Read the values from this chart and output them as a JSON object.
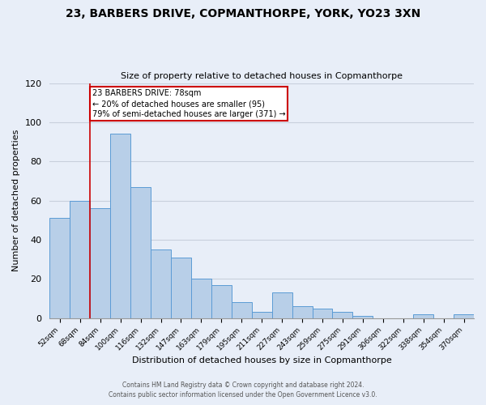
{
  "title": "23, BARBERS DRIVE, COPMANTHORPE, YORK, YO23 3XN",
  "subtitle": "Size of property relative to detached houses in Copmanthorpe",
  "xlabel": "Distribution of detached houses by size in Copmanthorpe",
  "ylabel": "Number of detached properties",
  "bar_labels": [
    "52sqm",
    "68sqm",
    "84sqm",
    "100sqm",
    "116sqm",
    "132sqm",
    "147sqm",
    "163sqm",
    "179sqm",
    "195sqm",
    "211sqm",
    "227sqm",
    "243sqm",
    "259sqm",
    "275sqm",
    "291sqm",
    "306sqm",
    "322sqm",
    "338sqm",
    "354sqm",
    "370sqm"
  ],
  "bar_heights": [
    51,
    60,
    56,
    94,
    67,
    35,
    31,
    20,
    17,
    8,
    3,
    13,
    6,
    5,
    3,
    1,
    0,
    0,
    2,
    0,
    2
  ],
  "bar_color": "#b8cfe8",
  "bar_edge_color": "#5b9bd5",
  "background_color": "#e8eef8",
  "grid_color": "#c8d0dc",
  "annotation_text": "23 BARBERS DRIVE: 78sqm\n← 20% of detached houses are smaller (95)\n79% of semi-detached houses are larger (371) →",
  "annotation_box_color": "#ffffff",
  "annotation_box_edge_color": "#cc0000",
  "ylim": [
    0,
    120
  ],
  "yticks": [
    0,
    20,
    40,
    60,
    80,
    100,
    120
  ],
  "footer_line1": "Contains HM Land Registry data © Crown copyright and database right 2024.",
  "footer_line2": "Contains public sector information licensed under the Open Government Licence v3.0."
}
